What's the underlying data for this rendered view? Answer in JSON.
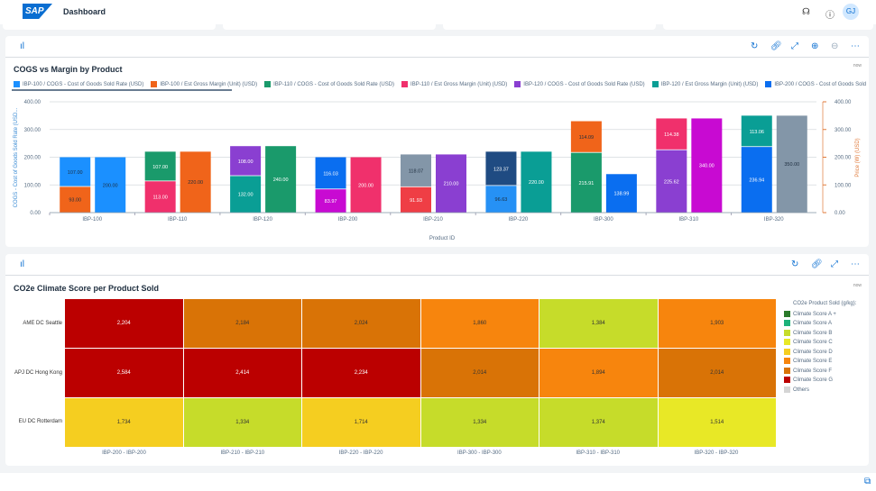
{
  "header": {
    "logo": "SAP",
    "title": "Dashboard",
    "icons": [
      "headset-icon",
      "help-icon"
    ],
    "avatar": "GJ"
  },
  "panel1": {
    "toolbar_icons": [
      "refresh-icon",
      "link-icon",
      "fullscreen-icon",
      "zoom-in-icon",
      "zoom-out-icon",
      "more-icon"
    ],
    "title": "COGS vs Margin by Product",
    "corner": "now"
  },
  "chart_data": {
    "type": "bar",
    "title": "COGS vs Margin by Product",
    "xlabel": "Product ID",
    "ylabel": "COGS - Cost of Goods Sold Rate (USD...",
    "y2label": "Price (W) (USD)",
    "ylim": [
      0,
      400
    ],
    "y2lim": [
      0,
      400
    ],
    "yticks": [
      "0.00",
      "100.00",
      "200.00",
      "300.00",
      "400.00"
    ],
    "grid": true,
    "legend": "top",
    "legend_items": [
      {
        "label": "IBP-100 / COGS - Cost of Goods Sold Rate (USD)",
        "color": "#1b90ff"
      },
      {
        "label": "IBP-100 / Est Gross Margin (Unit) (USD)",
        "color": "#f0641a"
      },
      {
        "label": "IBP-110 / COGS - Cost of Goods Sold Rate (USD)",
        "color": "#1a9a6b"
      },
      {
        "label": "IBP-110 / Est Gross Margin (Unit) (USD)",
        "color": "#f0306c"
      },
      {
        "label": "IBP-120 / COGS - Cost of Goods Sold Rate (USD)",
        "color": "#8a3fd1"
      },
      {
        "label": "IBP-120 / Est Gross Margin (Unit) (USD)",
        "color": "#0a9e95"
      },
      {
        "label": "IBP-200 / COGS - Cost of Goods Sold Rate (USD)",
        "color": "#0a6ef0"
      }
    ],
    "categories": [
      "IBP-100",
      "IBP-110",
      "IBP-120",
      "IBP-200",
      "IBP-210",
      "IBP-220",
      "IBP-300",
      "IBP-310",
      "IBP-320"
    ],
    "stack_bottom": [
      {
        "v": 93.0,
        "c": "#f0641a"
      },
      {
        "v": 113.0,
        "c": "#f0306c"
      },
      {
        "v": 132.0,
        "c": "#0a9e95"
      },
      {
        "v": 83.97,
        "c": "#c80ad2"
      },
      {
        "v": 91.93,
        "c": "#ef3e45"
      },
      {
        "v": 96.63,
        "c": "#2691f5"
      },
      {
        "v": 215.91,
        "c": "#1a9a6b"
      },
      {
        "v": 225.62,
        "c": "#8a3fd1"
      },
      {
        "v": 236.94,
        "c": "#0a6ef0"
      }
    ],
    "stack_top": [
      {
        "v": 107.0,
        "c": "#1b90ff"
      },
      {
        "v": 107.0,
        "c": "#1a9a6b"
      },
      {
        "v": 108.0,
        "c": "#8a3fd1"
      },
      {
        "v": 116.03,
        "c": "#0a6ef0"
      },
      {
        "v": 118.07,
        "c": "#8396a8"
      },
      {
        "v": 123.37,
        "c": "#1f4b82"
      },
      {
        "v": 114.09,
        "c": "#f0641a"
      },
      {
        "v": 114.38,
        "c": "#f0306c"
      },
      {
        "v": 113.06,
        "c": "#0a9e95"
      }
    ],
    "price": [
      {
        "v": 200.0,
        "c": "#1b90ff"
      },
      {
        "v": 220.0,
        "c": "#f0641a"
      },
      {
        "v": 240.0,
        "c": "#1a9a6b"
      },
      {
        "v": 200.0,
        "c": "#f0306c"
      },
      {
        "v": 210.0,
        "c": "#8a3fd1"
      },
      {
        "v": 220.0,
        "c": "#0a9e95"
      },
      {
        "v": 138.99,
        "c": "#0a6ef0"
      },
      {
        "v": 340.0,
        "c": "#c80ad2"
      },
      {
        "v": 350.0,
        "c": "#8396a8"
      }
    ]
  },
  "panel2": {
    "toolbar_icons": [
      "refresh-icon",
      "link-icon",
      "fullscreen-icon",
      "more-icon"
    ],
    "title": "CO2e Climate Score per Product Sold",
    "corner": "now",
    "rows": [
      "AME DC Seattle",
      "APJ DC Hong Kong",
      "EU DC Rotterdam"
    ],
    "cols": [
      "IBP-200 - IBP-200",
      "IBP-210 - IBP-210",
      "IBP-220 - IBP-220",
      "IBP-300 - IBP-300",
      "IBP-310 - IBP-310",
      "IBP-320 - IBP-320"
    ],
    "values": [
      [
        "2,204",
        "2,184",
        "2,024",
        "1,860",
        "1,384",
        "1,903"
      ],
      [
        "2,584",
        "2,414",
        "2,234",
        "2,014",
        "1,894",
        "2,014"
      ],
      [
        "1,734",
        "1,334",
        "1,714",
        "1,334",
        "1,374",
        "1,514"
      ]
    ],
    "scores": [
      [
        "G",
        "F",
        "F",
        "E",
        "B",
        "E"
      ],
      [
        "G",
        "G",
        "G",
        "F",
        "E",
        "F"
      ],
      [
        "D",
        "B",
        "D",
        "B",
        "B",
        "C"
      ]
    ],
    "legend_title": "CO2e Product Sold (g/kg):",
    "legend": [
      {
        "key": "A+",
        "label": "Climate Score A +",
        "color": "#2a7a2a"
      },
      {
        "key": "A",
        "label": "Climate Score A",
        "color": "#1db27a"
      },
      {
        "key": "B",
        "label": "Climate Score B",
        "color": "#c6dc2a"
      },
      {
        "key": "C",
        "label": "Climate Score C",
        "color": "#e8e826"
      },
      {
        "key": "D",
        "label": "Climate Score D",
        "color": "#f5ce20"
      },
      {
        "key": "E",
        "label": "Climate Score E",
        "color": "#f7850d"
      },
      {
        "key": "F",
        "label": "Climate Score F",
        "color": "#d97306"
      },
      {
        "key": "G",
        "label": "Climate Score G",
        "color": "#bb0000"
      },
      {
        "key": "O",
        "label": "Others",
        "color": "#d5d5d5"
      }
    ]
  }
}
